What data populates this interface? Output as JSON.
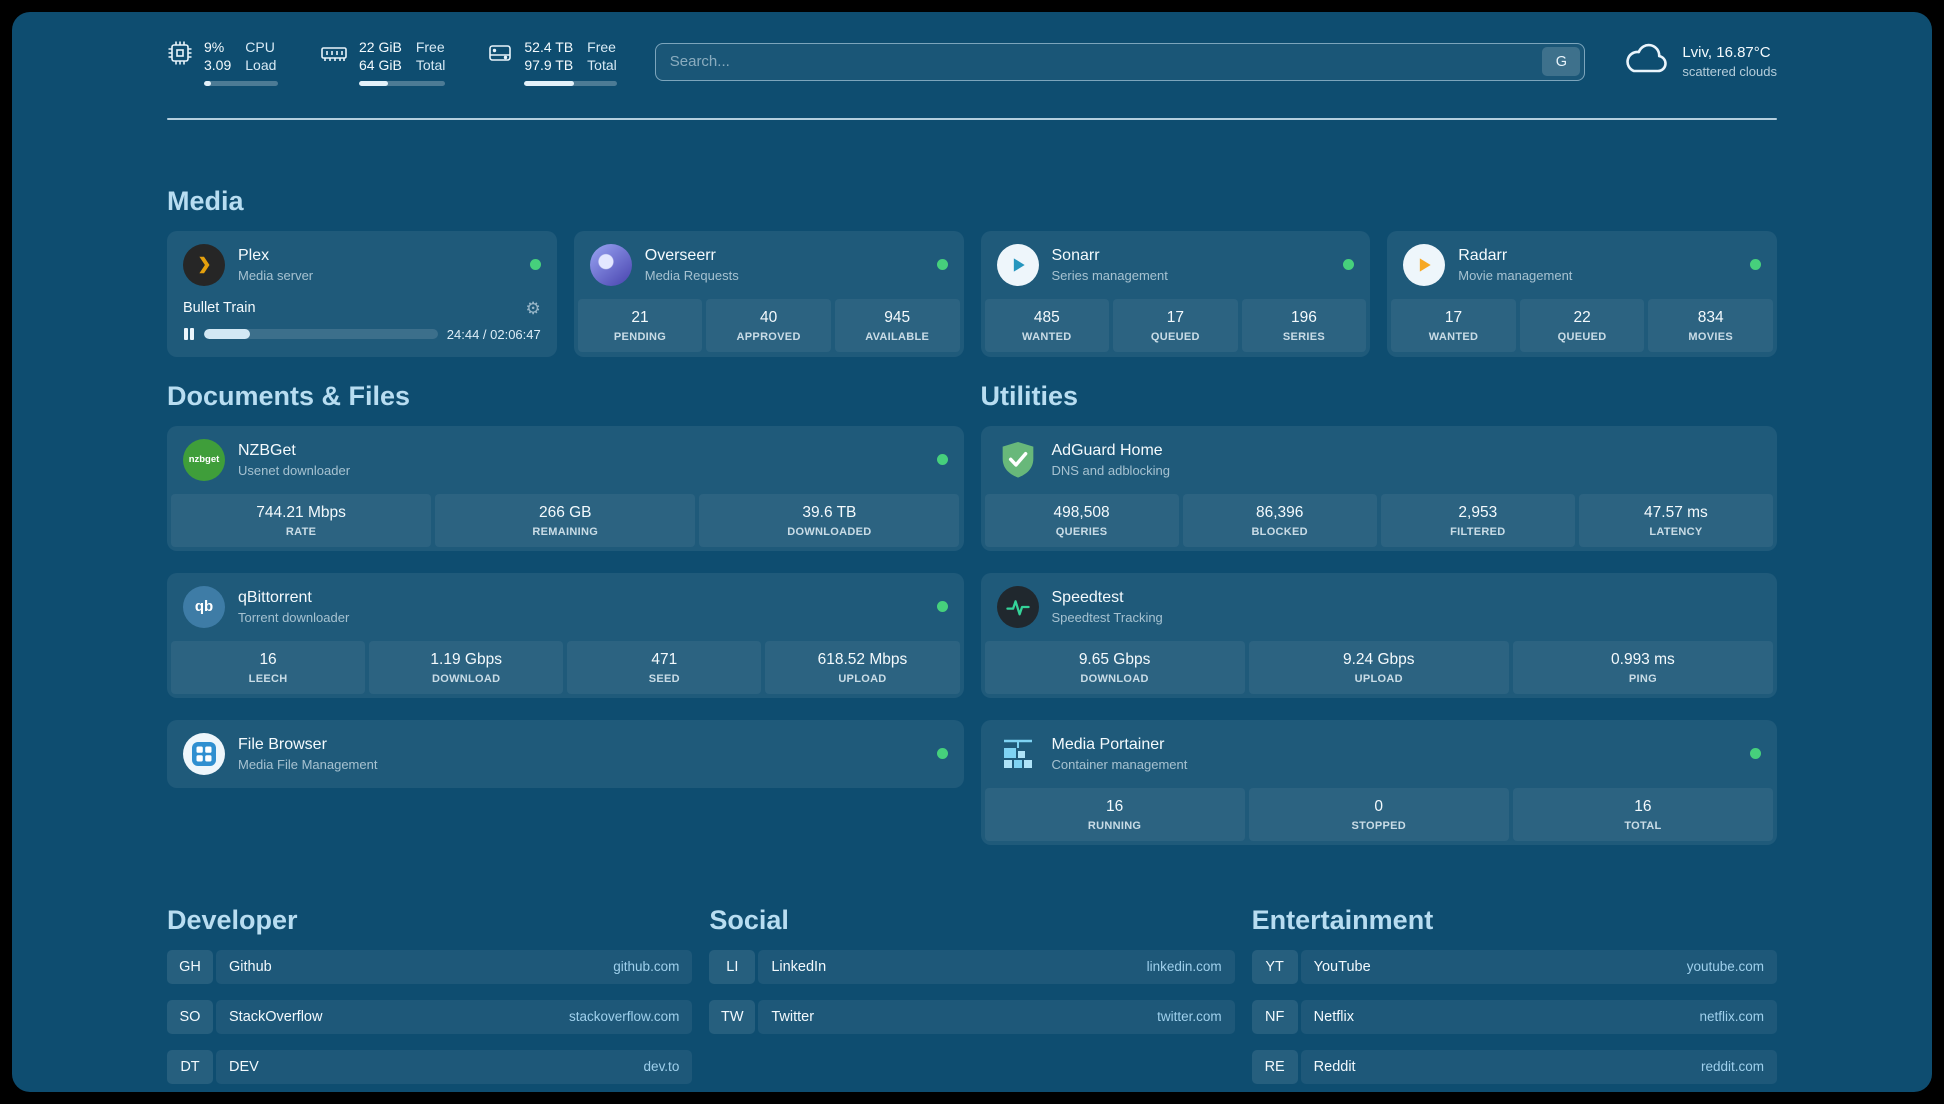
{
  "theme": {
    "background": "#0E4D70",
    "card": "rgba(255,255,255,0.075)",
    "status_green": "#46d07c",
    "section_title_color": "#b8ddf1",
    "plex_orange": "#e5a00d"
  },
  "topbar": {
    "cpu": {
      "value1": "9%",
      "value2": "3.09",
      "label1": "CPU",
      "label2": "Load",
      "bar_percent": 9
    },
    "memory": {
      "value1": "22 GiB",
      "value2": "64 GiB",
      "label1": "Free",
      "label2": "Total",
      "bar_percent": 34
    },
    "disk": {
      "value1": "52.4 TB",
      "value2": "97.9 TB",
      "label1": "Free",
      "label2": "Total",
      "bar_percent": 54
    },
    "search": {
      "placeholder": "Search...",
      "button_label": "G"
    },
    "weather": {
      "location": "Lviv, 16.87°C",
      "condition": "scattered clouds"
    }
  },
  "sections": {
    "media": {
      "title": "Media",
      "plex": {
        "name": "Plex",
        "subtitle": "Media server",
        "now_playing": "Bullet Train",
        "time": "24:44 / 02:06:47",
        "progress_percent": 19.5
      },
      "overseerr": {
        "name": "Overseerr",
        "subtitle": "Media Requests",
        "stats": [
          {
            "value": "21",
            "label": "PENDING"
          },
          {
            "value": "40",
            "label": "APPROVED"
          },
          {
            "value": "945",
            "label": "AVAILABLE"
          }
        ]
      },
      "sonarr": {
        "name": "Sonarr",
        "subtitle": "Series management",
        "stats": [
          {
            "value": "485",
            "label": "WANTED"
          },
          {
            "value": "17",
            "label": "QUEUED"
          },
          {
            "value": "196",
            "label": "SERIES"
          }
        ]
      },
      "radarr": {
        "name": "Radarr",
        "subtitle": "Movie management",
        "stats": [
          {
            "value": "17",
            "label": "WANTED"
          },
          {
            "value": "22",
            "label": "QUEUED"
          },
          {
            "value": "834",
            "label": "MOVIES"
          }
        ]
      }
    },
    "documents": {
      "title": "Documents & Files",
      "nzbget": {
        "name": "NZBGet",
        "subtitle": "Usenet downloader",
        "icon_text": "nzbget",
        "stats": [
          {
            "value": "744.21 Mbps",
            "label": "RATE"
          },
          {
            "value": "266 GB",
            "label": "REMAINING"
          },
          {
            "value": "39.6 TB",
            "label": "DOWNLOADED"
          }
        ]
      },
      "qbittorrent": {
        "name": "qBittorrent",
        "subtitle": "Torrent downloader",
        "icon_text": "qb",
        "stats": [
          {
            "value": "16",
            "label": "LEECH"
          },
          {
            "value": "1.19 Gbps",
            "label": "DOWNLOAD"
          },
          {
            "value": "471",
            "label": "SEED"
          },
          {
            "value": "618.52 Mbps",
            "label": "UPLOAD"
          }
        ]
      },
      "filebrowser": {
        "name": "File Browser",
        "subtitle": "Media File Management"
      }
    },
    "utilities": {
      "title": "Utilities",
      "adguard": {
        "name": "AdGuard Home",
        "subtitle": "DNS and adblocking",
        "stats": [
          {
            "value": "498,508",
            "label": "QUERIES"
          },
          {
            "value": "86,396",
            "label": "BLOCKED"
          },
          {
            "value": "2,953",
            "label": "FILTERED"
          },
          {
            "value": "47.57 ms",
            "label": "LATENCY"
          }
        ]
      },
      "speedtest": {
        "name": "Speedtest",
        "subtitle": "Speedtest Tracking",
        "stats": [
          {
            "value": "9.65 Gbps",
            "label": "DOWNLOAD"
          },
          {
            "value": "9.24 Gbps",
            "label": "UPLOAD"
          },
          {
            "value": "0.993 ms",
            "label": "PING"
          }
        ]
      },
      "portainer": {
        "name": "Media Portainer",
        "subtitle": "Container management",
        "stats": [
          {
            "value": "16",
            "label": "RUNNING"
          },
          {
            "value": "0",
            "label": "STOPPED"
          },
          {
            "value": "16",
            "label": "TOTAL"
          }
        ]
      }
    },
    "bookmarks": {
      "developer": {
        "title": "Developer",
        "items": [
          {
            "abbr": "GH",
            "name": "Github",
            "domain": "github.com"
          },
          {
            "abbr": "SO",
            "name": "StackOverflow",
            "domain": "stackoverflow.com"
          },
          {
            "abbr": "DT",
            "name": "DEV",
            "domain": "dev.to"
          }
        ]
      },
      "social": {
        "title": "Social",
        "items": [
          {
            "abbr": "LI",
            "name": "LinkedIn",
            "domain": "linkedin.com"
          },
          {
            "abbr": "TW",
            "name": "Twitter",
            "domain": "twitter.com"
          }
        ]
      },
      "entertainment": {
        "title": "Entertainment",
        "items": [
          {
            "abbr": "YT",
            "name": "YouTube",
            "domain": "youtube.com"
          },
          {
            "abbr": "NF",
            "name": "Netflix",
            "domain": "netflix.com"
          },
          {
            "abbr": "RE",
            "name": "Reddit",
            "domain": "reddit.com"
          }
        ]
      }
    }
  }
}
